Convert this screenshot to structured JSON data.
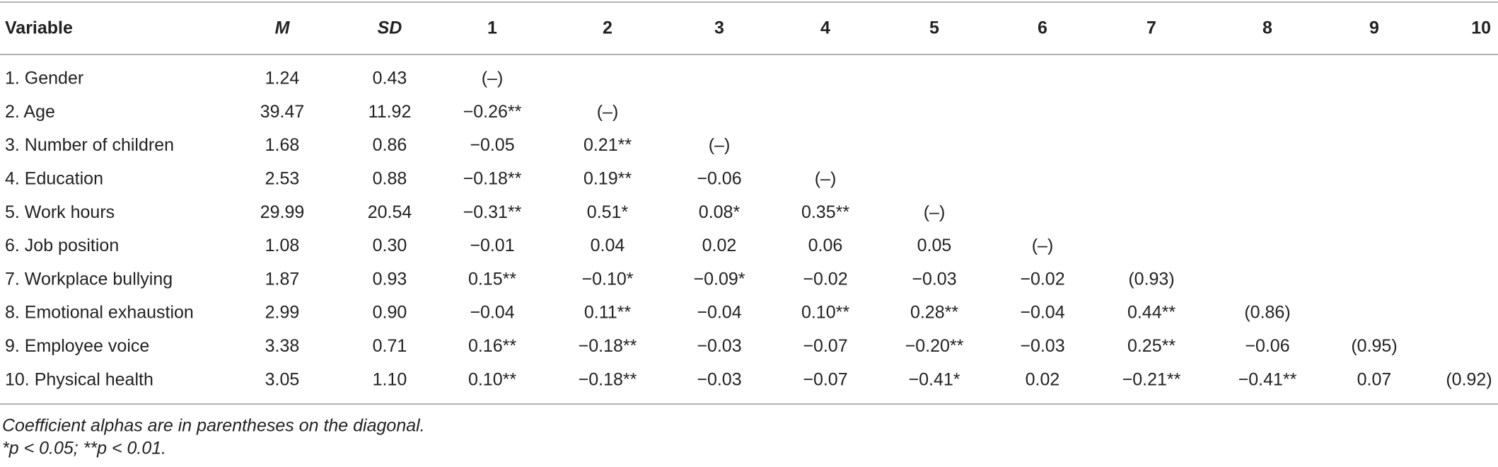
{
  "table": {
    "header": [
      "Variable",
      "M",
      "SD",
      "1",
      "2",
      "3",
      "4",
      "5",
      "6",
      "7",
      "8",
      "9",
      "10"
    ],
    "rows": [
      [
        "1. Gender",
        "1.24",
        "0.43",
        "(–)"
      ],
      [
        "2. Age",
        "39.47",
        "11.92",
        "−0.26**",
        "(–)"
      ],
      [
        "3. Number of children",
        "1.68",
        "0.86",
        "−0.05",
        "0.21**",
        "(–)"
      ],
      [
        "4. Education",
        "2.53",
        "0.88",
        "−0.18**",
        "0.19**",
        "−0.06",
        "(–)"
      ],
      [
        "5. Work hours",
        "29.99",
        "20.54",
        "−0.31**",
        "0.51*",
        "0.08*",
        "0.35**",
        "(–)"
      ],
      [
        "6. Job position",
        "1.08",
        "0.30",
        "−0.01",
        "0.04",
        "0.02",
        "0.06",
        "0.05",
        "(–)"
      ],
      [
        "7. Workplace bullying",
        "1.87",
        "0.93",
        "0.15**",
        "−0.10*",
        "−0.09*",
        "−0.02",
        "−0.03",
        "−0.02",
        "(0.93)"
      ],
      [
        "8. Emotional exhaustion",
        "2.99",
        "0.90",
        "−0.04",
        "0.11**",
        "−0.04",
        "0.10**",
        "0.28**",
        "−0.04",
        "0.44**",
        "(0.86)"
      ],
      [
        "9. Employee voice",
        "3.38",
        "0.71",
        "0.16**",
        "−0.18**",
        "−0.03",
        "−0.07",
        "−0.20**",
        "−0.03",
        "0.25**",
        "−0.06",
        "(0.95)"
      ],
      [
        "10. Physical health",
        "3.05",
        "1.10",
        "0.10**",
        "−0.18**",
        "−0.03",
        "−0.07",
        "−0.41*",
        "0.02",
        "−0.21**",
        "−0.41**",
        "0.07",
        "(0.92)"
      ]
    ]
  },
  "notes": [
    "Coefficient alphas are in parentheses on the diagonal.",
    "*p < 0.05; **p < 0.01."
  ]
}
